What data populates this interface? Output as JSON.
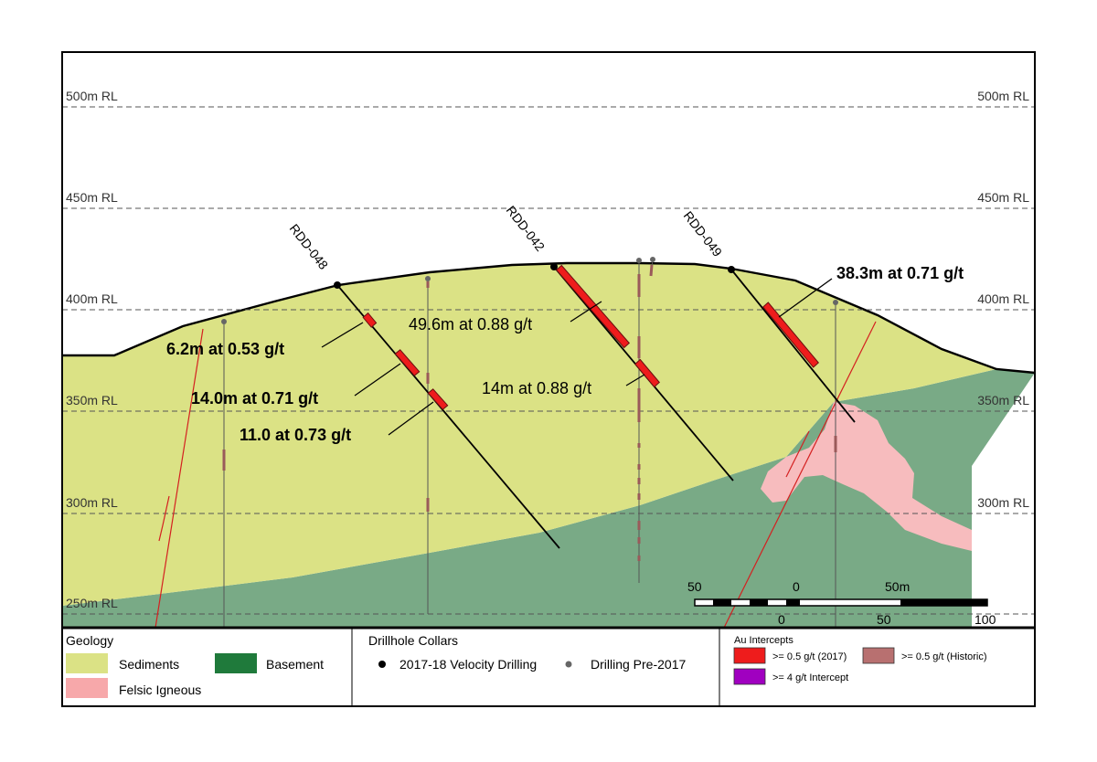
{
  "rl_labels": {
    "rl500": "500m RL",
    "rl450": "450m RL",
    "rl400": "400m RL",
    "rl350": "350m RL",
    "rl300": "300m RL",
    "rl250": "250m RL"
  },
  "holes": {
    "h048": "RDD-048",
    "h042": "RDD-042",
    "h049": "RDD-049"
  },
  "intercepts": {
    "i1": "6.2m at 0.53 g/t",
    "i2": "14.0m at 0.71 g/t",
    "i3": "11.0 at 0.73 g/t",
    "i4": "49.6m at 0.88 g/t",
    "i5": "14m at 0.88 g/t",
    "i6": "38.3m at 0.71 g/t"
  },
  "scale": {
    "t50": "50",
    "t0": "0",
    "t50m": "50m",
    "b0": "0",
    "b50": "50",
    "b100": "100"
  },
  "legend": {
    "geology": {
      "title": "Geology",
      "sediments": "Sediments",
      "basement": "Basement",
      "felsic": "Felsic Igneous"
    },
    "collars": {
      "title": "Drillhole Collars",
      "velocity": "2017-18 Velocity Drilling",
      "pre2017": "Drilling Pre-2017"
    },
    "au": {
      "title": "Au Intercepts",
      "i2017": ">= 0.5 g/t (2017)",
      "historic": ">= 0.5 g/t (Historic)",
      "high": ">= 4 g/t Intercept"
    }
  },
  "colors": {
    "sediments": "#dbe285",
    "basement": "#79aa86",
    "basement_legend": "#1f7a3b",
    "felsic": "#f7bcbe",
    "intercept_2017": "#ee1c1c",
    "intercept_historic": "#b87070",
    "intercept_high": "#a000c0",
    "fault": "#d42020"
  }
}
